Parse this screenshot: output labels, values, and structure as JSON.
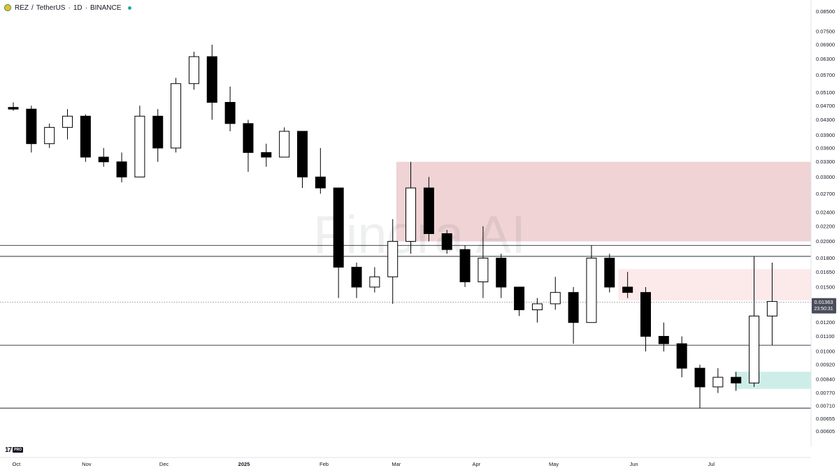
{
  "header": {
    "symbol": "REZ",
    "quote": "TetherUS",
    "separator": "/",
    "interval": "1D",
    "exchange": "BINANCE",
    "title": "REZ / TetherUS · 1D · BINANCE",
    "status_dot_color": "#22ab94",
    "logo_icon": "rez-coin-logo"
  },
  "watermark": "Finora AI",
  "branding": {
    "mark": "17",
    "tier": "PRO"
  },
  "price_tag": {
    "price": "0.01363",
    "countdown": "23:50:31"
  },
  "colors": {
    "up_body": "#ffffff",
    "down_body": "#000000",
    "wick": "#000000",
    "supply_zone": "#efd3d5",
    "supply_zone_light": "#fce9ea",
    "demand_zone": "#cdeee8",
    "price_tag_bg": "#4a4e5a"
  },
  "chart_data": {
    "type": "candlestick",
    "title": "REZ / TetherUS · 1D · BINANCE",
    "xlabel": "",
    "ylabel": "",
    "y_scale": "log",
    "ylim": [
      0.0058,
      0.0875
    ],
    "y_ticks": [
      "0.08500",
      "0.07500",
      "0.06900",
      "0.06300",
      "0.05700",
      "0.05100",
      "0.04700",
      "0.04300",
      "0.03900",
      "0.03600",
      "0.03300",
      "0.03000",
      "0.02700",
      "0.02400",
      "0.02200",
      "0.02000",
      "0.01800",
      "0.01650",
      "0.01500",
      "0.01363",
      "0.01200",
      "0.01100",
      "0.01000",
      "0.00920",
      "0.00840",
      "0.00770",
      "0.00710",
      "0.00655",
      "0.00605"
    ],
    "x_ticks": [
      "Oct",
      "Nov",
      "Dec",
      "2025",
      "Feb",
      "Mar",
      "Apr",
      "May",
      "Jun",
      "Jul"
    ],
    "x_tick_dates": [
      "2024-10-01",
      "2024-11-01",
      "2024-12-01",
      "2025-01-01",
      "2025-02-01",
      "2025-03-01",
      "2025-04-01",
      "2025-05-01",
      "2025-06-01",
      "2025-07-01"
    ],
    "horizontal_levels": [
      0.0195,
      0.0182,
      0.0104,
      0.007
    ],
    "last_price": 0.01363,
    "zones": [
      {
        "kind": "supply",
        "from": "2025-03-01",
        "to": "end",
        "low": 0.02,
        "high": 0.033
      },
      {
        "kind": "supply",
        "from": "2025-05-26",
        "to": "end",
        "low": 0.0138,
        "high": 0.0168
      },
      {
        "kind": "demand",
        "from": "2025-07-10",
        "to": "end",
        "low": 0.0079,
        "high": 0.0088
      }
    ],
    "series": [
      {
        "fields": [
          "date",
          "open",
          "high",
          "low",
          "close"
        ],
        "candles": [
          [
            "2024-09-29",
            0.0465,
            0.048,
            0.0455,
            0.046
          ],
          [
            "2024-10-06",
            0.046,
            0.047,
            0.035,
            0.037
          ],
          [
            "2024-10-13",
            0.037,
            0.042,
            0.036,
            0.041
          ],
          [
            "2024-10-20",
            0.041,
            0.046,
            0.038,
            0.044
          ],
          [
            "2024-10-27",
            0.044,
            0.0445,
            0.033,
            0.034
          ],
          [
            "2024-11-03",
            0.034,
            0.036,
            0.032,
            0.033
          ],
          [
            "2024-11-10",
            0.033,
            0.035,
            0.029,
            0.03
          ],
          [
            "2024-11-17",
            0.03,
            0.047,
            0.03,
            0.044
          ],
          [
            "2024-11-24",
            0.044,
            0.046,
            0.033,
            0.036
          ],
          [
            "2024-12-01",
            0.036,
            0.056,
            0.035,
            0.054
          ],
          [
            "2024-12-08",
            0.054,
            0.066,
            0.052,
            0.064
          ],
          [
            "2024-12-15",
            0.064,
            0.069,
            0.043,
            0.048
          ],
          [
            "2024-12-22",
            0.048,
            0.053,
            0.04,
            0.042
          ],
          [
            "2024-12-29",
            0.042,
            0.043,
            0.031,
            0.035
          ],
          [
            "2025-01-05",
            0.035,
            0.037,
            0.032,
            0.034
          ],
          [
            "2025-01-12",
            0.034,
            0.041,
            0.034,
            0.04
          ],
          [
            "2025-01-19",
            0.04,
            0.04,
            0.028,
            0.03
          ],
          [
            "2025-01-26",
            0.03,
            0.036,
            0.027,
            0.028
          ],
          [
            "2025-02-02",
            0.028,
            0.028,
            0.014,
            0.017
          ],
          [
            "2025-02-09",
            0.017,
            0.0175,
            0.014,
            0.015
          ],
          [
            "2025-02-16",
            0.015,
            0.017,
            0.0145,
            0.016
          ],
          [
            "2025-02-23",
            0.016,
            0.023,
            0.0135,
            0.02
          ],
          [
            "2025-03-02",
            0.02,
            0.033,
            0.0185,
            0.028
          ],
          [
            "2025-03-09",
            0.028,
            0.03,
            0.02,
            0.021
          ],
          [
            "2025-03-16",
            0.021,
            0.0215,
            0.0185,
            0.019
          ],
          [
            "2025-03-23",
            0.019,
            0.0195,
            0.015,
            0.0155
          ],
          [
            "2025-03-30",
            0.0155,
            0.022,
            0.014,
            0.018
          ],
          [
            "2025-04-06",
            0.018,
            0.0185,
            0.014,
            0.015
          ],
          [
            "2025-04-13",
            0.015,
            0.015,
            0.0125,
            0.013
          ],
          [
            "2025-04-20",
            0.013,
            0.014,
            0.012,
            0.0135
          ],
          [
            "2025-04-27",
            0.0135,
            0.016,
            0.013,
            0.0145
          ],
          [
            "2025-05-04",
            0.0145,
            0.015,
            0.0105,
            0.012
          ],
          [
            "2025-05-11",
            0.012,
            0.0195,
            0.012,
            0.018
          ],
          [
            "2025-05-18",
            0.018,
            0.0185,
            0.0145,
            0.015
          ],
          [
            "2025-05-25",
            0.015,
            0.0165,
            0.014,
            0.0145
          ],
          [
            "2025-06-01",
            0.0145,
            0.015,
            0.01,
            0.011
          ],
          [
            "2025-06-08",
            0.011,
            0.012,
            0.01,
            0.0105
          ],
          [
            "2025-06-15",
            0.0105,
            0.011,
            0.0085,
            0.009
          ],
          [
            "2025-06-22",
            0.009,
            0.0092,
            0.007,
            0.008
          ],
          [
            "2025-06-29",
            0.008,
            0.009,
            0.0077,
            0.0085
          ],
          [
            "2025-07-06",
            0.0085,
            0.0088,
            0.0078,
            0.0082
          ],
          [
            "2025-07-13",
            0.0082,
            0.0182,
            0.008,
            0.0125
          ],
          [
            "2025-07-20",
            0.0125,
            0.0175,
            0.0104,
            0.0137
          ]
        ]
      }
    ]
  }
}
